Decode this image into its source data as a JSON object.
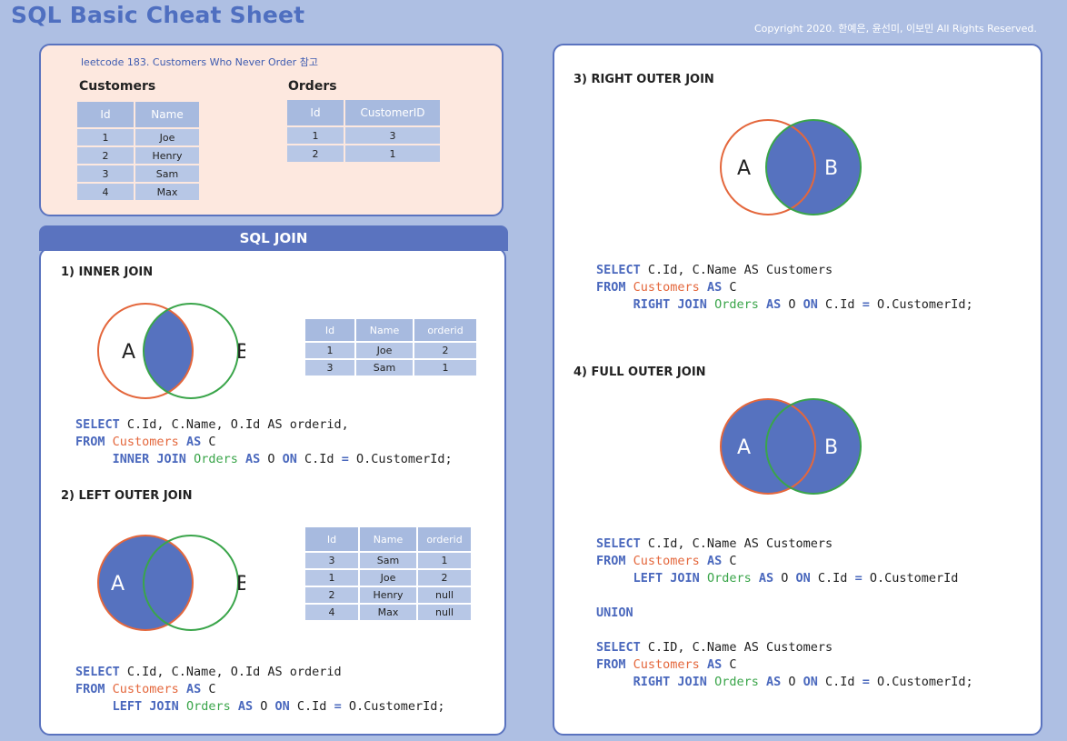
{
  "title": "SQL Basic Cheat Sheet",
  "copyright": "Copyright 2020. 한예은, 윤선미, 이보민 All Rights Reserved.",
  "example": {
    "note": "leetcode 183. Customers Who Never Order 참고",
    "customers": {
      "title": "Customers",
      "headers": [
        "Id",
        "Name"
      ],
      "rows": [
        [
          "1",
          "Joe"
        ],
        [
          "2",
          "Henry"
        ],
        [
          "3",
          "Sam"
        ],
        [
          "4",
          "Max"
        ]
      ]
    },
    "orders": {
      "title": "Orders",
      "headers": [
        "Id",
        "CustomerID"
      ],
      "rows": [
        [
          "1",
          "3"
        ],
        [
          "2",
          "1"
        ]
      ]
    }
  },
  "join_header": "SQL JOIN",
  "venn_labels": {
    "a": "A",
    "b": "B"
  },
  "inner": {
    "title": "1) INNER JOIN",
    "result_headers": [
      "Id",
      "Name",
      "orderid"
    ],
    "result_rows": [
      [
        "1",
        "Joe",
        "2"
      ],
      [
        "3",
        "Sam",
        "1"
      ]
    ],
    "code": [
      [
        {
          "t": "SELECT",
          "c": "kw"
        },
        {
          "t": " C.Id, C.Name, O.Id AS orderid,",
          "c": "plain"
        }
      ],
      [
        {
          "t": "FROM",
          "c": "kw"
        },
        {
          "t": " ",
          "c": "plain"
        },
        {
          "t": "Customers",
          "c": "kw-o"
        },
        {
          "t": " ",
          "c": "plain"
        },
        {
          "t": "AS",
          "c": "kw"
        },
        {
          "t": " C",
          "c": "plain"
        }
      ],
      [
        {
          "t": "     ",
          "c": "plain"
        },
        {
          "t": "INNER JOIN",
          "c": "kw"
        },
        {
          "t": " ",
          "c": "plain"
        },
        {
          "t": "Orders",
          "c": "kw-g"
        },
        {
          "t": " ",
          "c": "plain"
        },
        {
          "t": "AS",
          "c": "kw"
        },
        {
          "t": " O ",
          "c": "plain"
        },
        {
          "t": "ON",
          "c": "kw"
        },
        {
          "t": " C.Id ",
          "c": "plain"
        },
        {
          "t": "=",
          "c": "kw"
        },
        {
          "t": " O.CustomerId;",
          "c": "plain"
        }
      ]
    ]
  },
  "left": {
    "title": "2) LEFT OUTER JOIN",
    "result_headers": [
      "Id",
      "Name",
      "orderid"
    ],
    "result_rows": [
      [
        "3",
        "Sam",
        "1"
      ],
      [
        "1",
        "Joe",
        "2"
      ],
      [
        "2",
        "Henry",
        "null"
      ],
      [
        "4",
        "Max",
        "null"
      ]
    ],
    "code": [
      [
        {
          "t": "SELECT",
          "c": "kw"
        },
        {
          "t": " C.Id, C.Name, O.Id AS orderid",
          "c": "plain"
        }
      ],
      [
        {
          "t": "FROM",
          "c": "kw"
        },
        {
          "t": " ",
          "c": "plain"
        },
        {
          "t": "Customers",
          "c": "kw-o"
        },
        {
          "t": " ",
          "c": "plain"
        },
        {
          "t": "AS",
          "c": "kw"
        },
        {
          "t": " C",
          "c": "plain"
        }
      ],
      [
        {
          "t": "     ",
          "c": "plain"
        },
        {
          "t": "LEFT JOIN",
          "c": "kw"
        },
        {
          "t": " ",
          "c": "plain"
        },
        {
          "t": "Orders",
          "c": "kw-g"
        },
        {
          "t": " ",
          "c": "plain"
        },
        {
          "t": "AS",
          "c": "kw"
        },
        {
          "t": " O ",
          "c": "plain"
        },
        {
          "t": "ON",
          "c": "kw"
        },
        {
          "t": " C.Id ",
          "c": "plain"
        },
        {
          "t": "=",
          "c": "kw"
        },
        {
          "t": " O.CustomerId;",
          "c": "plain"
        }
      ]
    ]
  },
  "right": {
    "title": "3) RIGHT OUTER JOIN",
    "code": [
      [
        {
          "t": "SELECT",
          "c": "kw"
        },
        {
          "t": " C.Id, C.Name AS Customers",
          "c": "plain"
        }
      ],
      [
        {
          "t": "FROM",
          "c": "kw"
        },
        {
          "t": " ",
          "c": "plain"
        },
        {
          "t": "Customers",
          "c": "kw-o"
        },
        {
          "t": " ",
          "c": "plain"
        },
        {
          "t": "AS",
          "c": "kw"
        },
        {
          "t": " C",
          "c": "plain"
        }
      ],
      [
        {
          "t": "     ",
          "c": "plain"
        },
        {
          "t": "RIGHT JOIN",
          "c": "kw"
        },
        {
          "t": " ",
          "c": "plain"
        },
        {
          "t": "Orders",
          "c": "kw-g"
        },
        {
          "t": " ",
          "c": "plain"
        },
        {
          "t": "AS",
          "c": "kw"
        },
        {
          "t": " O ",
          "c": "plain"
        },
        {
          "t": "ON",
          "c": "kw"
        },
        {
          "t": " C.Id ",
          "c": "plain"
        },
        {
          "t": "=",
          "c": "kw"
        },
        {
          "t": " O.CustomerId;",
          "c": "plain"
        }
      ]
    ]
  },
  "full": {
    "title": "4) FULL OUTER JOIN",
    "code": [
      [
        {
          "t": "SELECT",
          "c": "kw"
        },
        {
          "t": " C.Id, C.Name AS Customers",
          "c": "plain"
        }
      ],
      [
        {
          "t": "FROM",
          "c": "kw"
        },
        {
          "t": " ",
          "c": "plain"
        },
        {
          "t": "Customers",
          "c": "kw-o"
        },
        {
          "t": " ",
          "c": "plain"
        },
        {
          "t": "AS",
          "c": "kw"
        },
        {
          "t": " C",
          "c": "plain"
        }
      ],
      [
        {
          "t": "     ",
          "c": "plain"
        },
        {
          "t": "LEFT JOIN",
          "c": "kw"
        },
        {
          "t": " ",
          "c": "plain"
        },
        {
          "t": "Orders",
          "c": "kw-g"
        },
        {
          "t": " ",
          "c": "plain"
        },
        {
          "t": "AS",
          "c": "kw"
        },
        {
          "t": " O ",
          "c": "plain"
        },
        {
          "t": "ON",
          "c": "kw"
        },
        {
          "t": " C.Id ",
          "c": "plain"
        },
        {
          "t": "=",
          "c": "kw"
        },
        {
          "t": " O.CustomerId",
          "c": "plain"
        }
      ],
      [],
      [
        {
          "t": "UNION",
          "c": "kw"
        }
      ],
      [],
      [
        {
          "t": "SELECT",
          "c": "kw"
        },
        {
          "t": " C.ID, C.Name AS Customers",
          "c": "plain"
        }
      ],
      [
        {
          "t": "FROM",
          "c": "kw"
        },
        {
          "t": " ",
          "c": "plain"
        },
        {
          "t": "Customers",
          "c": "kw-o"
        },
        {
          "t": " ",
          "c": "plain"
        },
        {
          "t": "AS",
          "c": "kw"
        },
        {
          "t": " C",
          "c": "plain"
        }
      ],
      [
        {
          "t": "     ",
          "c": "plain"
        },
        {
          "t": "RIGHT JOIN",
          "c": "kw"
        },
        {
          "t": " ",
          "c": "plain"
        },
        {
          "t": "Orders",
          "c": "kw-g"
        },
        {
          "t": " ",
          "c": "plain"
        },
        {
          "t": "AS",
          "c": "kw"
        },
        {
          "t": " O ",
          "c": "plain"
        },
        {
          "t": "ON",
          "c": "kw"
        },
        {
          "t": " C.Id ",
          "c": "plain"
        },
        {
          "t": "=",
          "c": "kw"
        },
        {
          "t": " O.CustomerId;",
          "c": "plain"
        }
      ]
    ]
  },
  "colors": {
    "fill": "#5672bf",
    "circle_a": "#e4673c",
    "circle_b": "#3aa54a",
    "accent": "#5a73bf"
  }
}
